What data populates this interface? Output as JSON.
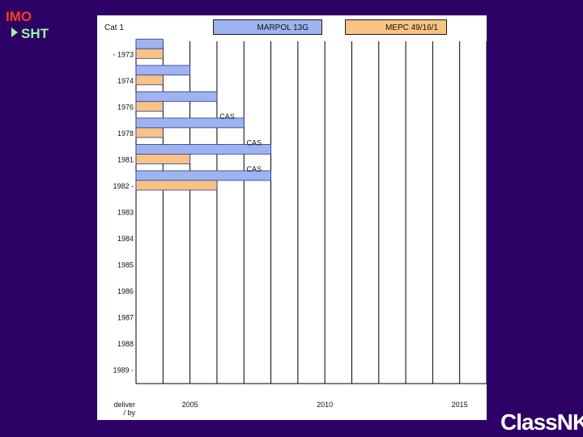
{
  "header": {
    "imo": "IMO",
    "sht": "SHT"
  },
  "logo": {
    "text": "ClassNK"
  },
  "legend": {
    "category": "Cat 1",
    "marpol": "MARPOL 13G",
    "mepc": "MEPC 49/16/1"
  },
  "colors": {
    "background": "#2d0066",
    "marpol": "#9eb3ef",
    "mepc": "#f9c384",
    "imo": "#ff3b1f",
    "sht": "#9ff29f"
  },
  "chart_data": {
    "type": "bar",
    "title": "",
    "ylabel": "delivery",
    "xlabel": "",
    "xlim": [
      2003,
      2016
    ],
    "x_tick_labels": [
      {
        "value": 2005,
        "label": "2005"
      },
      {
        "value": 2010,
        "label": "2010"
      },
      {
        "value": 2015,
        "label": "2015"
      }
    ],
    "categories": [
      "- 1973",
      "1974",
      "1976",
      "1978",
      "1981",
      "1982 -",
      "1983",
      "1984",
      "1985",
      "1986",
      "1987",
      "1988",
      "1989 -"
    ],
    "axis_footer": {
      "left": "deliver",
      "sub": "/ by"
    },
    "series": [
      {
        "name": "MARPOL 13G",
        "end_year": [
          2004,
          2005,
          2006,
          2007,
          2008,
          2008,
          null,
          null,
          null,
          null,
          null,
          null,
          null
        ],
        "labels": [
          "",
          "",
          "",
          "CAS",
          "CAS",
          "CAS",
          "",
          "",
          "",
          "",
          "",
          "",
          ""
        ]
      },
      {
        "name": "MEPC 49/16/1",
        "end_year": [
          2004,
          2004,
          2004,
          2004,
          2005,
          2006,
          null,
          null,
          null,
          null,
          null,
          null,
          null
        ],
        "labels": [
          "",
          "",
          "",
          "",
          "",
          "",
          "",
          "",
          "",
          "",
          "",
          "",
          ""
        ]
      }
    ],
    "start_year": 2003
  }
}
